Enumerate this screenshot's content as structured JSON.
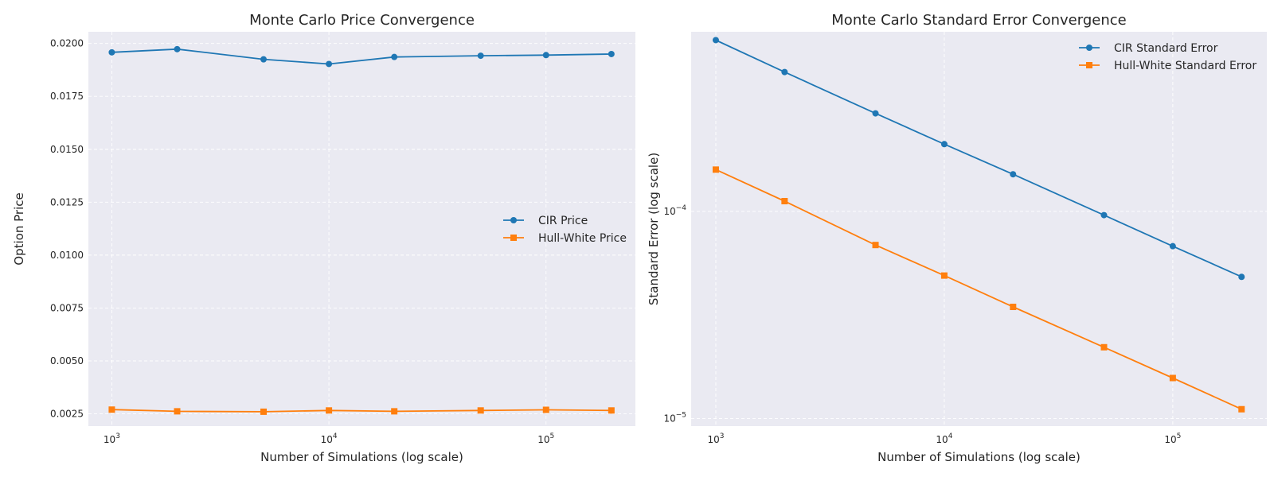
{
  "colors": {
    "figure_background": "#ffffff",
    "plot_background": "#eaeaf2",
    "grid": "#ffffff",
    "text": "#262626"
  },
  "chart_data": [
    {
      "type": "line",
      "title": "Monte Carlo Price Convergence",
      "xlabel": "Number of Simulations (log scale)",
      "ylabel": "Option Price",
      "x_scale": "log",
      "y_scale": "linear",
      "x": [
        1000,
        2000,
        5000,
        10000,
        20000,
        50000,
        100000,
        200000
      ],
      "xlim": [
        780,
        258000
      ],
      "ylim": [
        0.00192,
        0.02055
      ],
      "x_ticks": [
        {
          "value": 1000,
          "base": "10",
          "exp": "3"
        },
        {
          "value": 10000,
          "base": "10",
          "exp": "4"
        },
        {
          "value": 100000,
          "base": "10",
          "exp": "5"
        }
      ],
      "y_ticks": [
        {
          "value": 0.0025,
          "label": "0.0025"
        },
        {
          "value": 0.005,
          "label": "0.0050"
        },
        {
          "value": 0.0075,
          "label": "0.0075"
        },
        {
          "value": 0.01,
          "label": "0.0100"
        },
        {
          "value": 0.0125,
          "label": "0.0125"
        },
        {
          "value": 0.015,
          "label": "0.0150"
        },
        {
          "value": 0.0175,
          "label": "0.0175"
        },
        {
          "value": 0.02,
          "label": "0.0200"
        }
      ],
      "grid": true,
      "legend": "center-right",
      "series": [
        {
          "name": "CIR Price",
          "color": "#1f77b4",
          "marker": "circle",
          "values": [
            0.01958,
            0.01973,
            0.01925,
            0.01903,
            0.01936,
            0.01942,
            0.01945,
            0.0195
          ]
        },
        {
          "name": "Hull-White Price",
          "color": "#ff7f0e",
          "marker": "square",
          "values": [
            0.0027,
            0.00262,
            0.0026,
            0.00266,
            0.00262,
            0.00266,
            0.00269,
            0.00266
          ]
        }
      ]
    },
    {
      "type": "line",
      "title": "Monte Carlo Standard Error Convergence",
      "xlabel": "Number of Simulations (log scale)",
      "ylabel": "Standard Error (log scale)",
      "x_scale": "log",
      "y_scale": "log",
      "x": [
        1000,
        2000,
        5000,
        10000,
        20000,
        50000,
        100000,
        200000
      ],
      "xlim": [
        780,
        258000
      ],
      "ylim": [
        9.2e-06,
        0.000735
      ],
      "x_ticks": [
        {
          "value": 1000,
          "base": "10",
          "exp": "3"
        },
        {
          "value": 10000,
          "base": "10",
          "exp": "4"
        },
        {
          "value": 100000,
          "base": "10",
          "exp": "5"
        }
      ],
      "y_ticks": [
        {
          "value": 1e-05,
          "base": "10",
          "exp": "−5"
        },
        {
          "value": 0.0001,
          "base": "10",
          "exp": "−4"
        }
      ],
      "grid": true,
      "legend": "top-right",
      "series": [
        {
          "name": "CIR Standard Error",
          "color": "#1f77b4",
          "marker": "circle",
          "values": [
            0.00067,
            0.00047,
            0.000297,
            0.000211,
            0.000151,
            9.59e-05,
            6.79e-05,
            4.83e-05
          ]
        },
        {
          "name": "Hull-White Standard Error",
          "color": "#ff7f0e",
          "marker": "square",
          "values": [
            0.000159,
            0.000112,
            6.88e-05,
            4.9e-05,
            3.46e-05,
            2.21e-05,
            1.57e-05,
            1.11e-05
          ]
        }
      ]
    }
  ]
}
